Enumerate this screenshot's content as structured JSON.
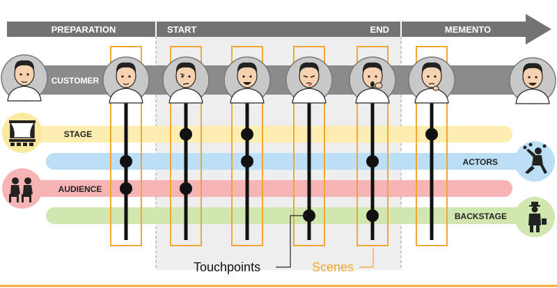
{
  "phases": {
    "preparation": "PREPARATION",
    "start": "START",
    "end": "END",
    "memento": "MEMENTO"
  },
  "lanes": {
    "customer": "CUSTOMER",
    "stage": "STAGE",
    "actors": "ACTORS",
    "audience": "AUDIENCE",
    "backstage": "BACKSTAGE"
  },
  "legend": {
    "touchpoints": "Touchpoints",
    "scenes": "Scenes"
  },
  "colors": {
    "arrow": "#737373",
    "scene_frame": "#f0a630",
    "stage": "#fbeeb0",
    "actors": "#bcdff5",
    "audience": "#f6b4b4",
    "backstage": "#d2e6b0",
    "accent_line": "#f0a630",
    "dot": "#111111"
  },
  "scenes": [
    {
      "id": "scene-1",
      "expression": "hopeful",
      "stage": false,
      "actors": true,
      "audience": true,
      "backstage": false
    },
    {
      "id": "scene-2",
      "expression": "skeptical",
      "stage": true,
      "actors": false,
      "audience": true,
      "backstage": false
    },
    {
      "id": "scene-3",
      "expression": "happy",
      "stage": true,
      "actors": true,
      "audience": false,
      "backstage": false
    },
    {
      "id": "scene-4",
      "expression": "disgusted",
      "stage": false,
      "actors": false,
      "audience": false,
      "backstage": true
    },
    {
      "id": "scene-5",
      "expression": "shocked",
      "stage": false,
      "actors": true,
      "audience": false,
      "backstage": true
    },
    {
      "id": "scene-6",
      "expression": "thoughtful",
      "stage": true,
      "actors": false,
      "audience": false,
      "backstage": false
    }
  ],
  "icons": {
    "customer_start": "customer-face-icon",
    "customer_end": "customer-satisfied-icon",
    "stage": "theater-stage-icon",
    "actors": "actor-juggler-icon",
    "audience": "audience-seats-icon",
    "backstage": "backstage-staff-icon"
  }
}
